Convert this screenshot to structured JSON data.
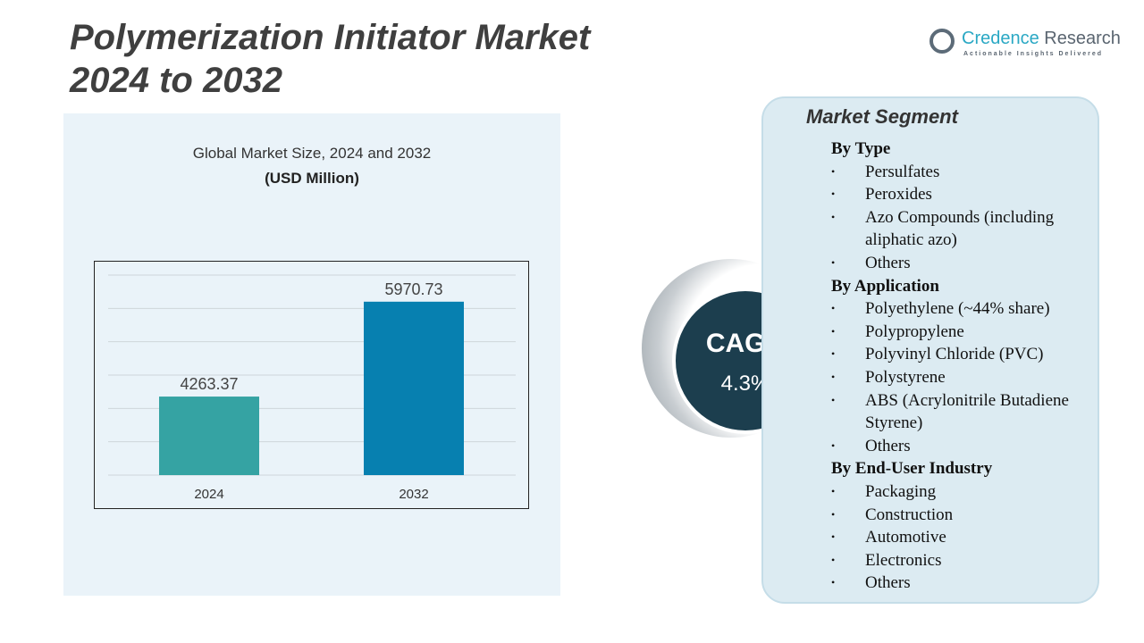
{
  "title": "Polymerization Initiator Market 2024 to 2032",
  "title_lines": [
    "Polymerization Initiator Market",
    "2024 to 2032"
  ],
  "logo": {
    "name_a": "Credence",
    "name_b": " Research",
    "tagline": "Actionable Insights Delivered"
  },
  "chart_data": {
    "type": "bar",
    "title": "Global Market Size, 2024 and 2032",
    "subtitle": "(USD Million)",
    "categories": [
      "2024",
      "2032"
    ],
    "values": [
      4263.37,
      5970.73
    ],
    "data_labels": [
      "4263.37",
      "5970.73"
    ],
    "colors": [
      "#35a3a3",
      "#0780b0"
    ],
    "ylim": [
      2850,
      6450
    ],
    "grid": true
  },
  "segment": {
    "title": "Market Segment",
    "groups": [
      {
        "header": "By Type",
        "items": [
          "Persulfates",
          "Peroxides",
          "Azo Compounds (including aliphatic azo)",
          "Others"
        ]
      },
      {
        "header": "By Application",
        "items": [
          "Polyethylene (~44% share)",
          "Polypropylene",
          "Polyvinyl Chloride (PVC)",
          "Polystyrene",
          "ABS (Acrylonitrile Butadiene Styrene)",
          "Others"
        ]
      },
      {
        "header": "By End-User Industry",
        "items": [
          "Packaging",
          "Construction",
          "Automotive",
          "Electronics",
          "Others"
        ]
      }
    ]
  },
  "cagr": {
    "label": "CAGR",
    "value": "4.3%"
  }
}
